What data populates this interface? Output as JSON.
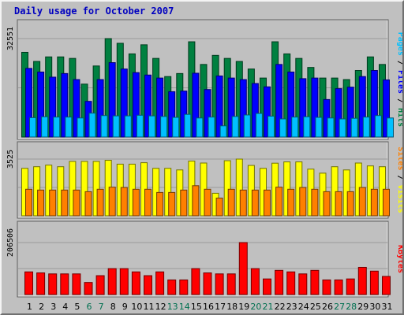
{
  "title": "Daily usage for October 2007",
  "colors": {
    "title": "#0000c0",
    "hits": "#008040",
    "files": "#0000ff",
    "pages": "#00c0ff",
    "visits": "#ffff00",
    "sites": "#ff8000",
    "kbytes": "#ff0000",
    "weekend_label": "#007050",
    "weekday_label": "#000000"
  },
  "chart_data": [
    {
      "type": "bar",
      "panel": "top",
      "ymax_label": "32551",
      "ymax": 32551,
      "legend": [
        {
          "text": "Pages",
          "color": "#00c0ff"
        },
        {
          "text": " / ",
          "color": "#000000"
        },
        {
          "text": "Files",
          "color": "#0000ff"
        },
        {
          "text": " / ",
          "color": "#000000"
        },
        {
          "text": "Hits",
          "color": "#008040"
        }
      ],
      "categories": [
        "1",
        "2",
        "3",
        "4",
        "5",
        "6",
        "7",
        "8",
        "9",
        "10",
        "11",
        "12",
        "13",
        "14",
        "15",
        "16",
        "17",
        "18",
        "19",
        "20",
        "21",
        "22",
        "23",
        "24",
        "25",
        "26",
        "27",
        "28",
        "29",
        "30",
        "31"
      ],
      "weekend_days": [
        6,
        7,
        13,
        14,
        20,
        21,
        27,
        28
      ],
      "series": [
        {
          "name": "Hits",
          "values": [
            28000,
            25000,
            26500,
            26500,
            26000,
            17500,
            23500,
            32551,
            31000,
            27500,
            30500,
            26000,
            20000,
            21000,
            31500,
            24000,
            27000,
            26000,
            25000,
            22500,
            19500,
            31500,
            27500,
            26000,
            23000,
            19500,
            19500,
            19000,
            22000,
            26500,
            24000
          ]
        },
        {
          "name": "Files",
          "values": [
            22700,
            21500,
            19800,
            21000,
            19000,
            11800,
            19000,
            24600,
            22500,
            21300,
            20500,
            19500,
            15000,
            15200,
            21100,
            15700,
            20200,
            19500,
            19000,
            17700,
            16600,
            24000,
            21500,
            19300,
            19500,
            12400,
            16000,
            16500,
            20000,
            22000,
            18900
          ]
        },
        {
          "name": "Pages",
          "values": [
            6400,
            6700,
            6600,
            6600,
            6300,
            7900,
            7100,
            7000,
            7000,
            7200,
            7000,
            6800,
            6500,
            7500,
            6300,
            6600,
            3700,
            6800,
            7300,
            7800,
            6900,
            6000,
            6600,
            6700,
            6500,
            6300,
            6000,
            6200,
            6600,
            7100,
            6300
          ]
        }
      ]
    },
    {
      "type": "bar",
      "panel": "middle",
      "ymax_label": "3525",
      "ymax": 3525,
      "legend": [
        {
          "text": "Sites",
          "color": "#ff8000"
        },
        {
          "text": " / ",
          "color": "#000000"
        },
        {
          "text": "Visits",
          "color": "#ffff00"
        }
      ],
      "categories": [
        "1",
        "2",
        "3",
        "4",
        "5",
        "6",
        "7",
        "8",
        "9",
        "10",
        "11",
        "12",
        "13",
        "14",
        "15",
        "16",
        "17",
        "18",
        "19",
        "20",
        "21",
        "22",
        "23",
        "24",
        "25",
        "26",
        "27",
        "28",
        "29",
        "30",
        "31"
      ],
      "series": [
        {
          "name": "Visits",
          "values": [
            2950,
            3050,
            3150,
            3050,
            3380,
            3380,
            3380,
            3450,
            3210,
            3210,
            3300,
            2950,
            2950,
            2850,
            3400,
            3280,
            1400,
            3425,
            3525,
            3130,
            2950,
            3270,
            3350,
            3350,
            2900,
            2650,
            3050,
            2850,
            3280,
            3100,
            3050
          ]
        },
        {
          "name": "Sites",
          "values": [
            1650,
            1600,
            1600,
            1600,
            1600,
            1500,
            1650,
            1780,
            1760,
            1650,
            1650,
            1450,
            1450,
            1600,
            1870,
            1650,
            1100,
            1650,
            1600,
            1600,
            1600,
            1780,
            1650,
            1760,
            1650,
            1500,
            1500,
            1500,
            1760,
            1650,
            1650
          ]
        }
      ]
    },
    {
      "type": "bar",
      "panel": "bottom",
      "ymax_label": "206506",
      "ymax": 206506,
      "legend": [
        {
          "text": "KBytes",
          "color": "#ff0000"
        }
      ],
      "categories": [
        "1",
        "2",
        "3",
        "4",
        "5",
        "6",
        "7",
        "8",
        "9",
        "10",
        "11",
        "12",
        "13",
        "14",
        "15",
        "16",
        "17",
        "18",
        "19",
        "20",
        "21",
        "22",
        "23",
        "24",
        "25",
        "26",
        "27",
        "28",
        "29",
        "30",
        "31"
      ],
      "series": [
        {
          "name": "KBytes",
          "values": [
            90000,
            86000,
            82000,
            82000,
            82000,
            48000,
            75000,
            103000,
            103000,
            90000,
            75000,
            90000,
            58000,
            58000,
            103000,
            86000,
            82000,
            82000,
            206506,
            103000,
            62000,
            96000,
            90000,
            82000,
            96000,
            58000,
            58000,
            62000,
            108000,
            93000,
            72000
          ]
        }
      ]
    }
  ]
}
